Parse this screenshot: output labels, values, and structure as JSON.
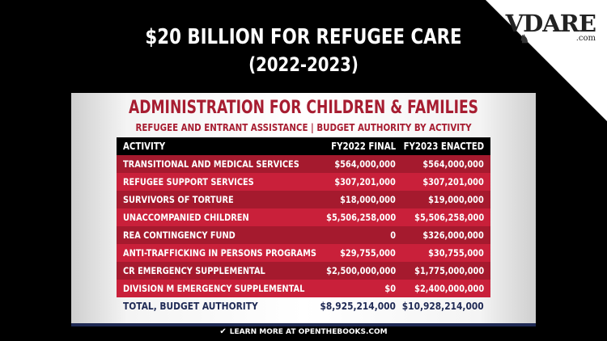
{
  "logo": {
    "main": "VDARE",
    "sub": ".com"
  },
  "title": "$20 BILLION FOR REFUGEE CARE",
  "subtitle": "(2022-2023)",
  "card": {
    "title": "ADMINISTRATION FOR CHILDREN & FAMILIES",
    "subtitle": "REFUGEE AND ENTRANT ASSISTANCE | BUDGET AUTHORITY BY ACTIVITY"
  },
  "table": {
    "headers": [
      "ACTIVITY",
      "FY2022 FINAL",
      "FY2023 ENACTED"
    ],
    "rows": [
      [
        "TRANSITIONAL AND MEDICAL SERVICES",
        "$564,000,000",
        "$564,000,000"
      ],
      [
        "REFUGEE SUPPORT SERVICES",
        "$307,201,000",
        "$307,201,000"
      ],
      [
        "SURVIVORS OF TORTURE",
        "$18,000,000",
        "$19,000,000"
      ],
      [
        "UNACCOMPANIED CHILDREN",
        "$5,506,258,000",
        "$5,506,258,000"
      ],
      [
        "REA CONTINGENCY FUND",
        "0",
        "$326,000,000"
      ],
      [
        "ANTI-TRAFFICKING IN PERSONS PROGRAMS",
        "$29,755,000",
        "$30,755,000"
      ],
      [
        "CR EMERGENCY SUPPLEMENTAL",
        "$2,500,000,000",
        "$1,775,000,000"
      ],
      [
        "DIVISION M EMERGENCY SUPPLEMENTAL",
        "$0",
        "$2,400,000,000"
      ]
    ],
    "total": [
      "TOTAL, BUDGET AUTHORITY",
      "$8,925,214,000",
      "$10,928,214,000"
    ]
  },
  "footer": "LEARN MORE AT OPENTHEBOOKS.COM",
  "colors": {
    "accent": "#a71d31",
    "row_dark": "#a51a2e",
    "row_light": "#c9203a",
    "navy": "#1f2a55"
  }
}
